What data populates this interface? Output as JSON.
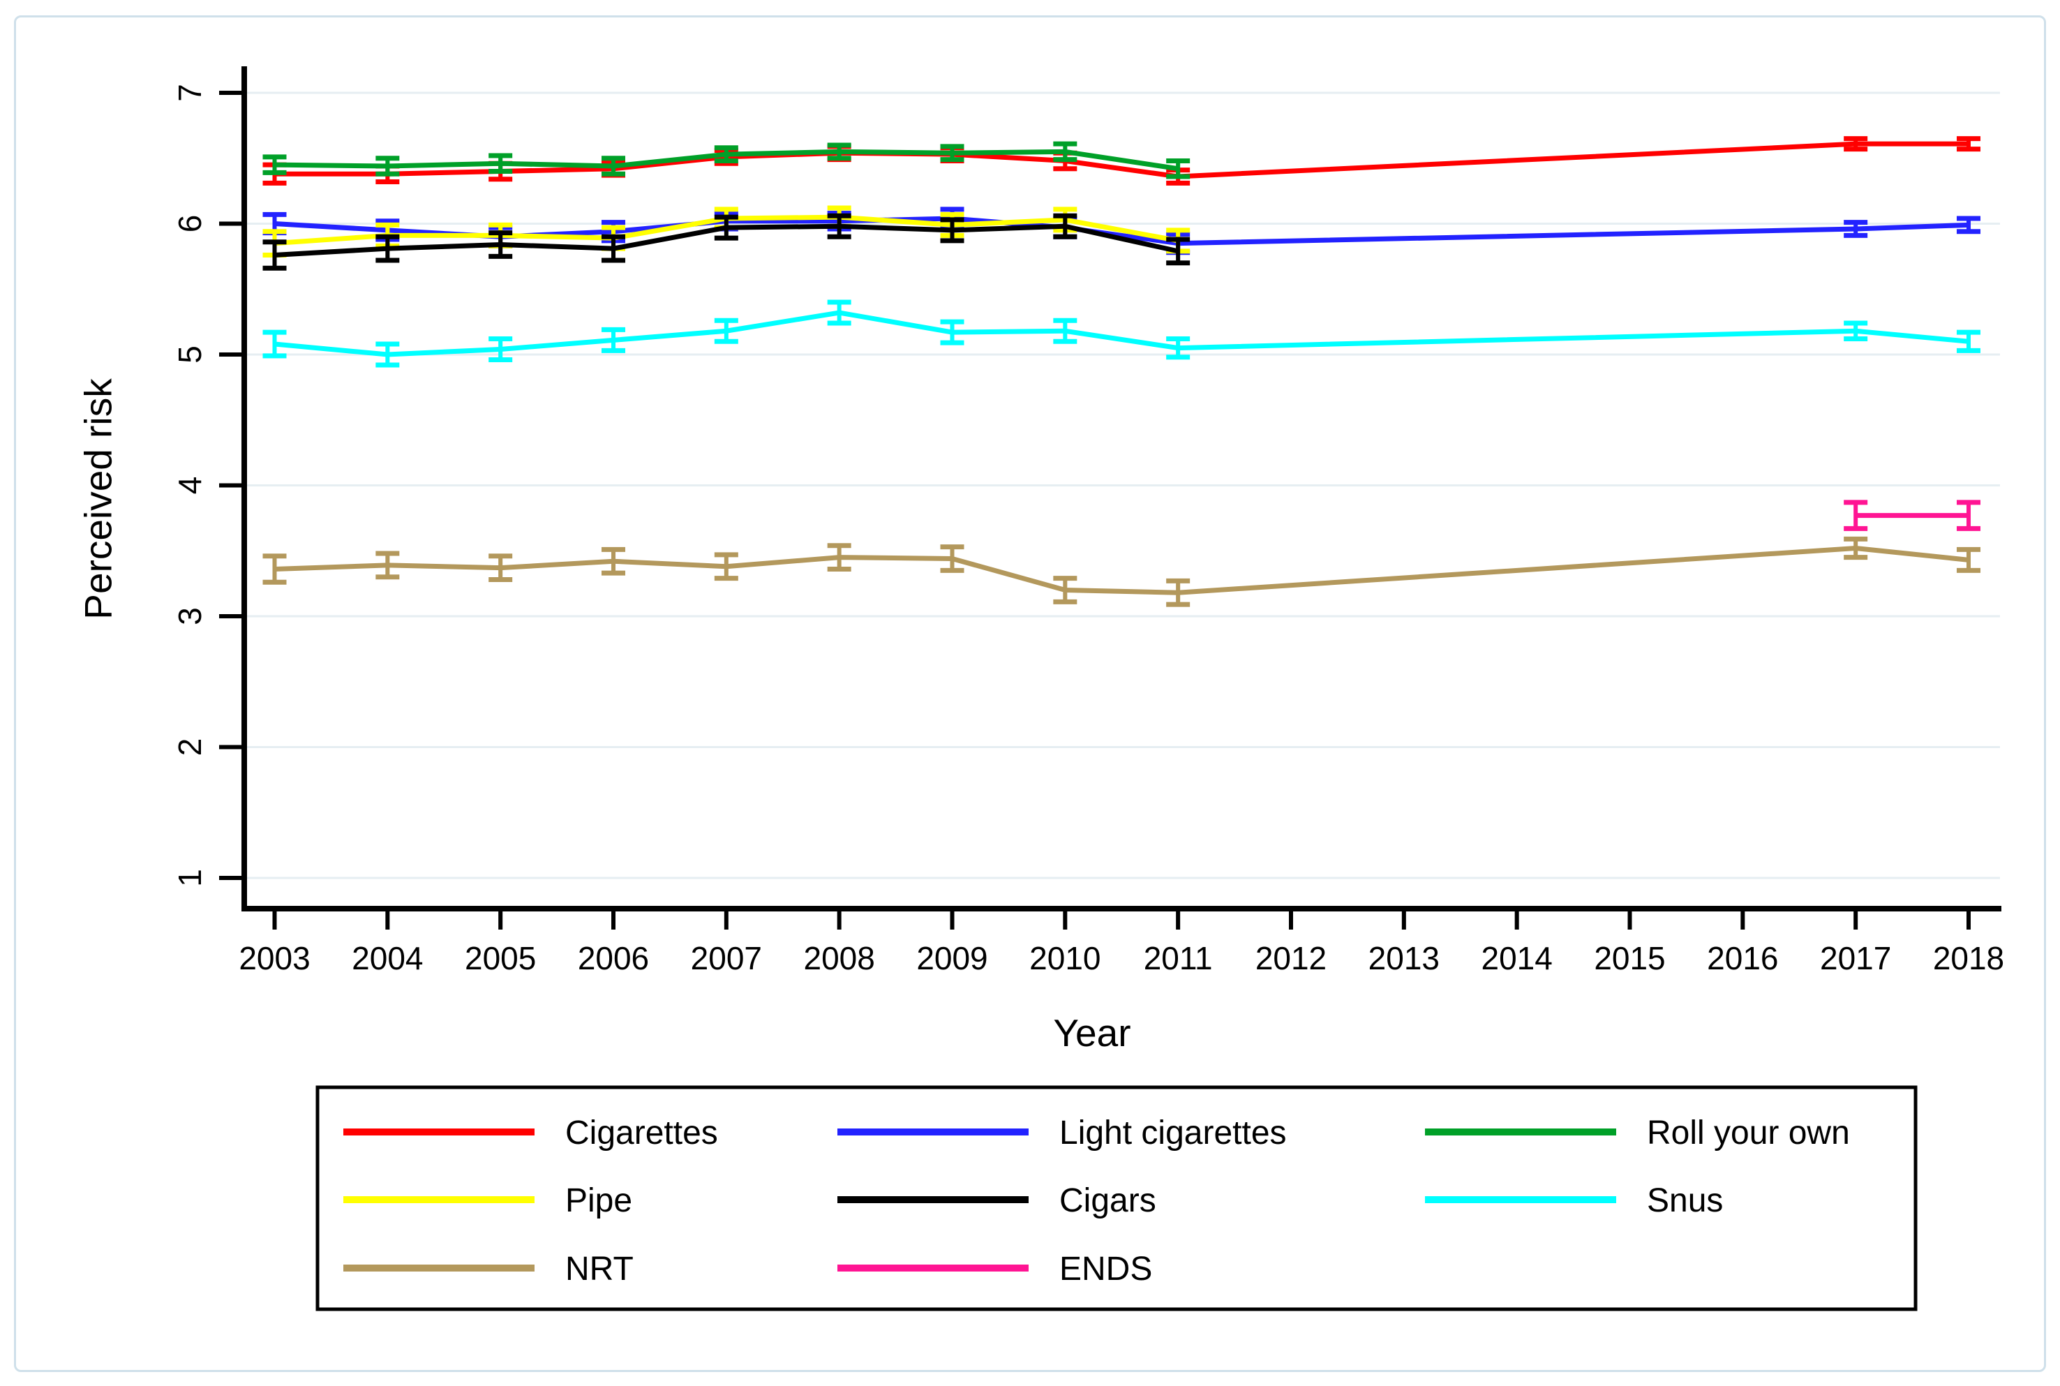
{
  "figure": {
    "background": "#ffffff",
    "frame_color": "#cfe0ea",
    "grid_color": "#e6eef2",
    "axis_color": "#000000",
    "legend_border_color": "#000000"
  },
  "chart_data": {
    "type": "line",
    "title": "",
    "xlabel": "Year",
    "ylabel": "Perceived risk",
    "x_ticks": [
      2003,
      2004,
      2005,
      2006,
      2007,
      2008,
      2009,
      2010,
      2011,
      2012,
      2013,
      2014,
      2015,
      2016,
      2017,
      2018
    ],
    "y_ticks": [
      1,
      2,
      3,
      4,
      5,
      6,
      7
    ],
    "ylim": [
      1,
      7
    ],
    "xlim": [
      2003,
      2018
    ],
    "grid": "horizontal",
    "error_bars": true,
    "legend_position": "bottom",
    "series": [
      {
        "name": "Cigarettes",
        "color": "#ff0000",
        "points": [
          {
            "x": 2003,
            "y": 6.38,
            "e": 0.07
          },
          {
            "x": 2004,
            "y": 6.38,
            "e": 0.06
          },
          {
            "x": 2005,
            "y": 6.4,
            "e": 0.06
          },
          {
            "x": 2006,
            "y": 6.42,
            "e": 0.05
          },
          {
            "x": 2007,
            "y": 6.51,
            "e": 0.05
          },
          {
            "x": 2008,
            "y": 6.54,
            "e": 0.05
          },
          {
            "x": 2009,
            "y": 6.53,
            "e": 0.05
          },
          {
            "x": 2010,
            "y": 6.48,
            "e": 0.06
          },
          {
            "x": 2011,
            "y": 6.36,
            "e": 0.05
          },
          {
            "x": 2017,
            "y": 6.61,
            "e": 0.04
          },
          {
            "x": 2018,
            "y": 6.61,
            "e": 0.04
          }
        ]
      },
      {
        "name": "Light cigarettes",
        "color": "#2222ff",
        "points": [
          {
            "x": 2003,
            "y": 6.0,
            "e": 0.07
          },
          {
            "x": 2004,
            "y": 5.95,
            "e": 0.07
          },
          {
            "x": 2005,
            "y": 5.9,
            "e": 0.07
          },
          {
            "x": 2006,
            "y": 5.94,
            "e": 0.07
          },
          {
            "x": 2007,
            "y": 6.02,
            "e": 0.06
          },
          {
            "x": 2008,
            "y": 6.02,
            "e": 0.06
          },
          {
            "x": 2009,
            "y": 6.04,
            "e": 0.07
          },
          {
            "x": 2010,
            "y": 5.97,
            "e": 0.07
          },
          {
            "x": 2011,
            "y": 5.85,
            "e": 0.07
          },
          {
            "x": 2017,
            "y": 5.96,
            "e": 0.05
          },
          {
            "x": 2018,
            "y": 5.99,
            "e": 0.05
          }
        ]
      },
      {
        "name": "Roll your own",
        "color": "#00a028",
        "points": [
          {
            "x": 2003,
            "y": 6.45,
            "e": 0.06
          },
          {
            "x": 2004,
            "y": 6.44,
            "e": 0.06
          },
          {
            "x": 2005,
            "y": 6.46,
            "e": 0.06
          },
          {
            "x": 2006,
            "y": 6.44,
            "e": 0.06
          },
          {
            "x": 2007,
            "y": 6.53,
            "e": 0.05
          },
          {
            "x": 2008,
            "y": 6.55,
            "e": 0.05
          },
          {
            "x": 2009,
            "y": 6.54,
            "e": 0.05
          },
          {
            "x": 2010,
            "y": 6.55,
            "e": 0.06
          },
          {
            "x": 2011,
            "y": 6.42,
            "e": 0.06
          }
        ]
      },
      {
        "name": "Pipe",
        "color": "#ffff00",
        "points": [
          {
            "x": 2003,
            "y": 5.85,
            "e": 0.09
          },
          {
            "x": 2004,
            "y": 5.91,
            "e": 0.08
          },
          {
            "x": 2005,
            "y": 5.91,
            "e": 0.08
          },
          {
            "x": 2006,
            "y": 5.89,
            "e": 0.08
          },
          {
            "x": 2007,
            "y": 6.04,
            "e": 0.07
          },
          {
            "x": 2008,
            "y": 6.05,
            "e": 0.07
          },
          {
            "x": 2009,
            "y": 5.99,
            "e": 0.08
          },
          {
            "x": 2010,
            "y": 6.03,
            "e": 0.08
          },
          {
            "x": 2011,
            "y": 5.87,
            "e": 0.08
          }
        ]
      },
      {
        "name": "Cigars",
        "color": "#000000",
        "points": [
          {
            "x": 2003,
            "y": 5.76,
            "e": 0.1
          },
          {
            "x": 2004,
            "y": 5.81,
            "e": 0.09
          },
          {
            "x": 2005,
            "y": 5.84,
            "e": 0.09
          },
          {
            "x": 2006,
            "y": 5.81,
            "e": 0.09
          },
          {
            "x": 2007,
            "y": 5.97,
            "e": 0.08
          },
          {
            "x": 2008,
            "y": 5.98,
            "e": 0.08
          },
          {
            "x": 2009,
            "y": 5.95,
            "e": 0.08
          },
          {
            "x": 2010,
            "y": 5.98,
            "e": 0.08
          },
          {
            "x": 2011,
            "y": 5.79,
            "e": 0.09
          }
        ]
      },
      {
        "name": "Snus",
        "color": "#00ffff",
        "points": [
          {
            "x": 2003,
            "y": 5.08,
            "e": 0.09
          },
          {
            "x": 2004,
            "y": 5.0,
            "e": 0.08
          },
          {
            "x": 2005,
            "y": 5.04,
            "e": 0.08
          },
          {
            "x": 2006,
            "y": 5.11,
            "e": 0.08
          },
          {
            "x": 2007,
            "y": 5.18,
            "e": 0.08
          },
          {
            "x": 2008,
            "y": 5.32,
            "e": 0.08
          },
          {
            "x": 2009,
            "y": 5.17,
            "e": 0.08
          },
          {
            "x": 2010,
            "y": 5.18,
            "e": 0.08
          },
          {
            "x": 2011,
            "y": 5.05,
            "e": 0.07
          },
          {
            "x": 2017,
            "y": 5.18,
            "e": 0.06
          },
          {
            "x": 2018,
            "y": 5.1,
            "e": 0.07
          }
        ]
      },
      {
        "name": "NRT",
        "color": "#b3985c",
        "points": [
          {
            "x": 2003,
            "y": 3.36,
            "e": 0.1
          },
          {
            "x": 2004,
            "y": 3.39,
            "e": 0.09
          },
          {
            "x": 2005,
            "y": 3.37,
            "e": 0.09
          },
          {
            "x": 2006,
            "y": 3.42,
            "e": 0.09
          },
          {
            "x": 2007,
            "y": 3.38,
            "e": 0.09
          },
          {
            "x": 2008,
            "y": 3.45,
            "e": 0.09
          },
          {
            "x": 2009,
            "y": 3.44,
            "e": 0.09
          },
          {
            "x": 2010,
            "y": 3.2,
            "e": 0.09
          },
          {
            "x": 2011,
            "y": 3.18,
            "e": 0.09
          },
          {
            "x": 2017,
            "y": 3.52,
            "e": 0.07
          },
          {
            "x": 2018,
            "y": 3.43,
            "e": 0.08
          }
        ]
      },
      {
        "name": "ENDS",
        "color": "#ff1493",
        "points": [
          {
            "x": 2017,
            "y": 3.77,
            "e": 0.1
          },
          {
            "x": 2018,
            "y": 3.77,
            "e": 0.1
          }
        ]
      }
    ]
  }
}
